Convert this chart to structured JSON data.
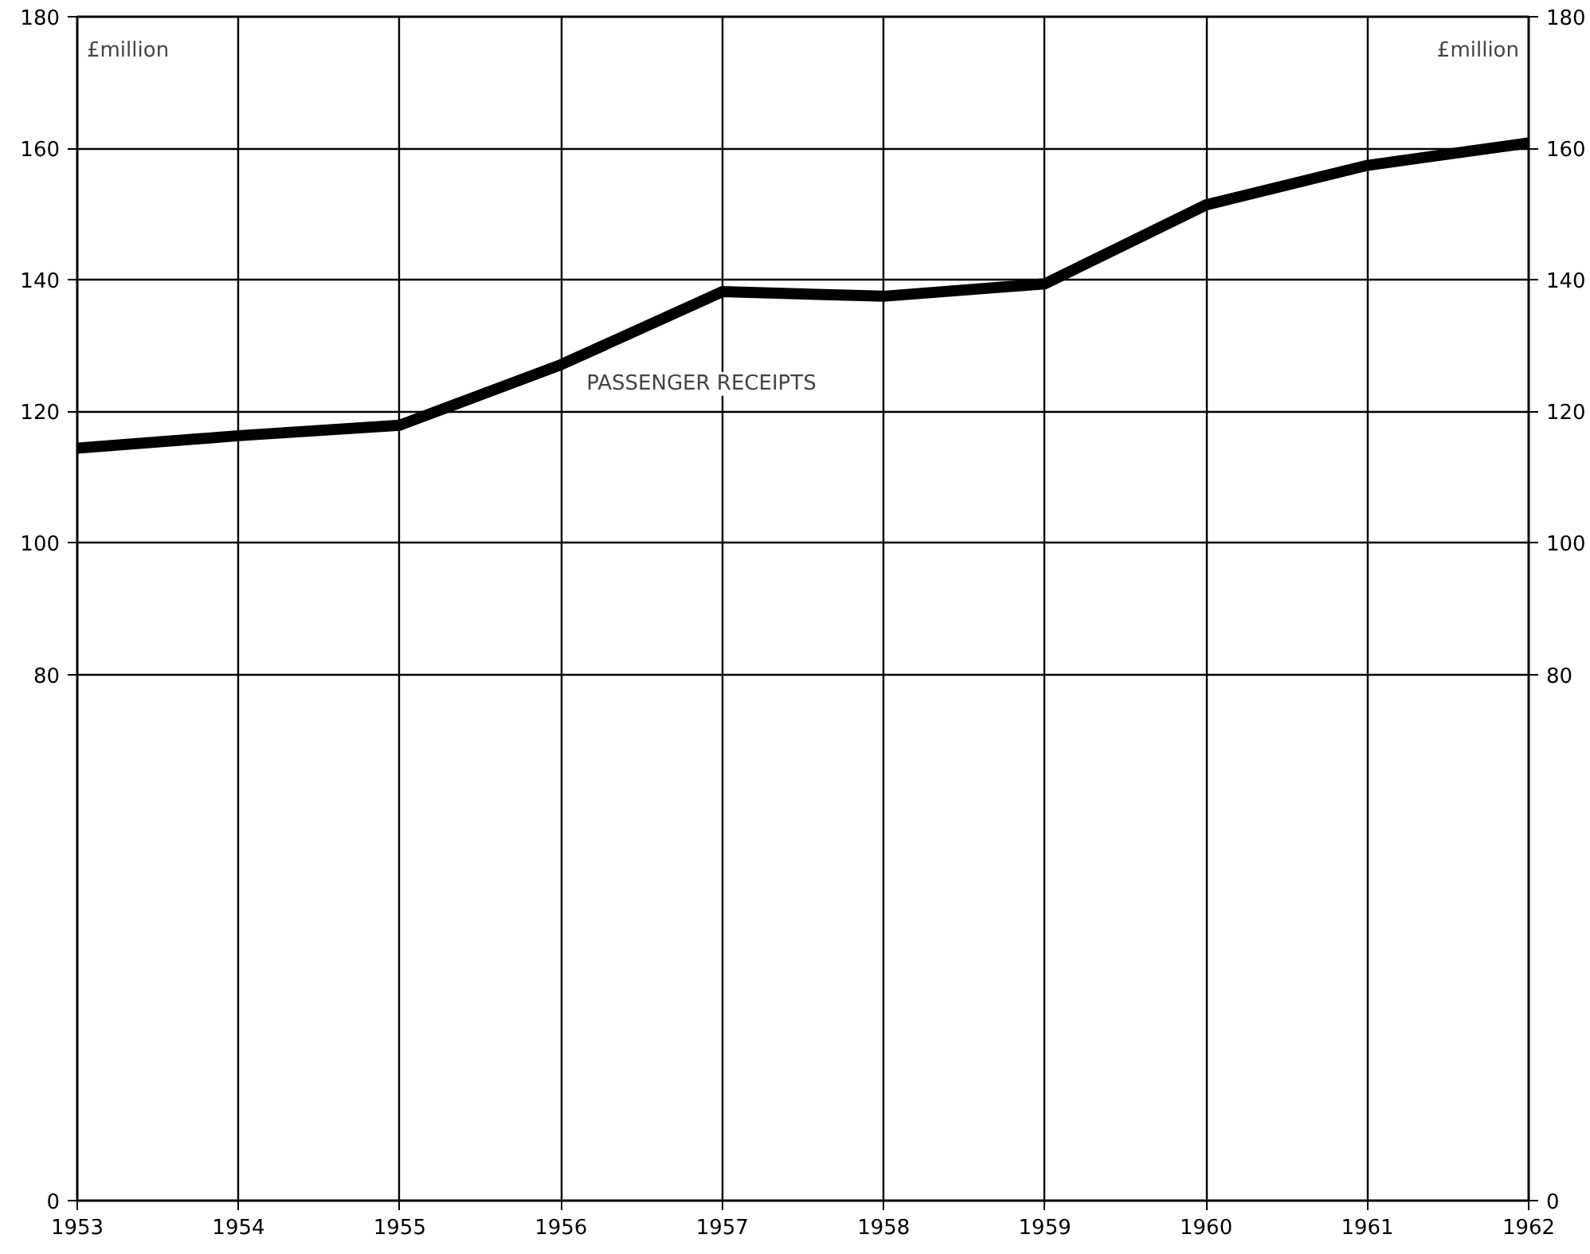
{
  "chart_data": {
    "type": "line",
    "x": [
      1953,
      1954,
      1955,
      1956,
      1957,
      1958,
      1959,
      1960,
      1961,
      1962
    ],
    "series": [
      {
        "color": "#000000",
        "values": [
          114.4,
          116.3,
          117.9,
          127.1,
          138.2,
          137.5,
          139.4,
          151.4,
          157.4,
          160.8
        ]
      }
    ],
    "xlim": [
      1953,
      1962
    ],
    "xticks": [
      1953,
      1954,
      1955,
      1956,
      1957,
      1958,
      1959,
      1960,
      1961,
      1962
    ],
    "ylim": [
      0,
      180
    ],
    "yticks": [
      0,
      80,
      100,
      120,
      140,
      160,
      180
    ],
    "y2lim": [
      0,
      180
    ],
    "y2ticks": [
      0,
      80,
      100,
      120,
      140,
      160,
      180
    ],
    "ylabel": "£million",
    "y2label": "£million",
    "annotations": [
      "PASSENGER RECEIPTS"
    ],
    "grid": true,
    "marker": "none",
    "line_style": "solid"
  }
}
